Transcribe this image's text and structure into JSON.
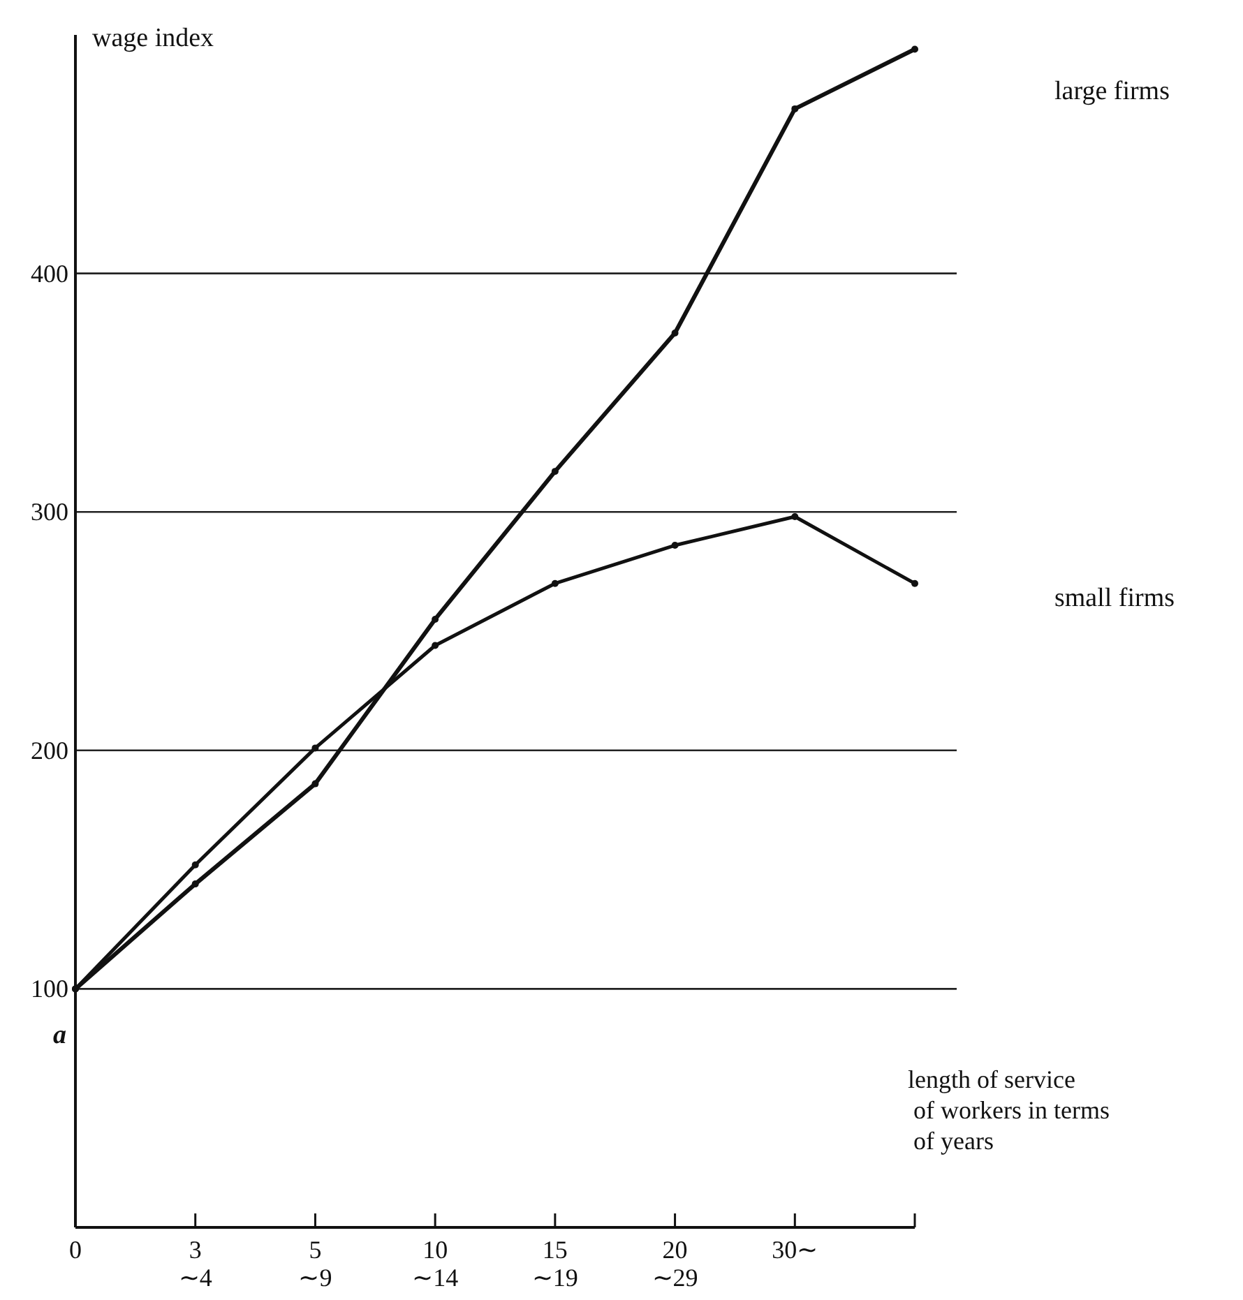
{
  "chart_data": {
    "type": "line",
    "ylabel": "wage index",
    "xlabel": "length of service\nof workers in terms\nof years",
    "annotations": [
      "a"
    ],
    "categories": [
      "0",
      "3\n∼4",
      "5\n∼9",
      "10\n∼14",
      "15\n∼19",
      "20\n∼29",
      "30∼",
      null
    ],
    "ylim": [
      0,
      500
    ],
    "yticks": [
      {
        "value": 0,
        "label": null
      },
      100,
      200,
      300,
      400
    ],
    "grid": "y",
    "marker": "circle",
    "line_style": "solid",
    "series": [
      {
        "name": "large firms",
        "color": "#111111",
        "values": [
          100,
          144,
          186,
          255,
          317,
          375,
          469,
          494
        ]
      },
      {
        "name": "small firms",
        "color": "#111111",
        "values": [
          100,
          152,
          201,
          244,
          270,
          286,
          298,
          270
        ]
      }
    ]
  }
}
